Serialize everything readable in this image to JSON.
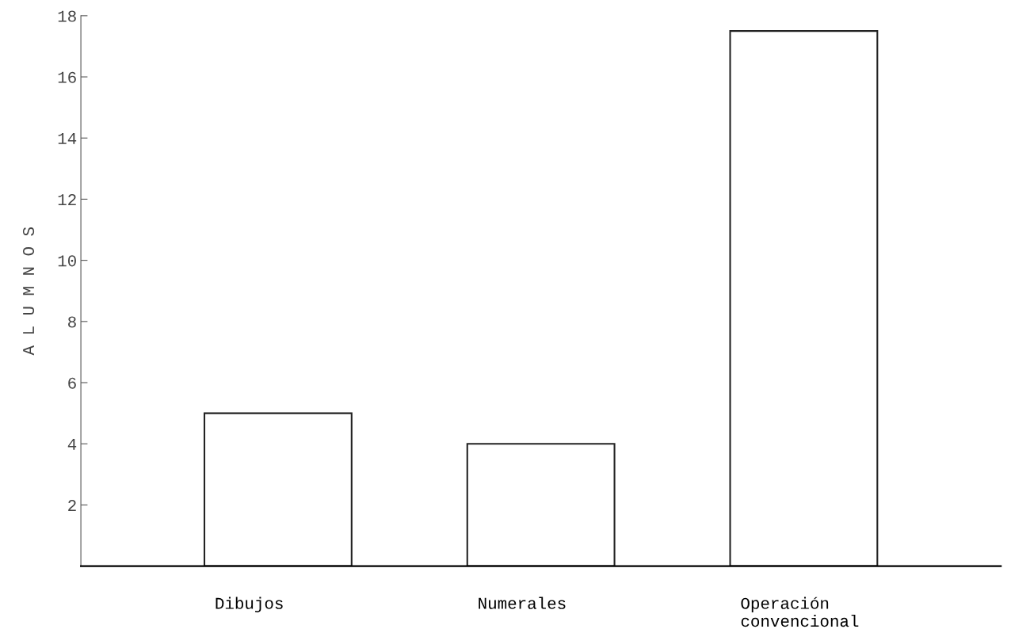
{
  "chart_data": {
    "type": "bar",
    "ylabel": "A L U M N O S",
    "categories": [
      "Dibujos",
      "Numerales",
      "Operación\nconvencional"
    ],
    "values": [
      5,
      4,
      17.5
    ],
    "color": "#ffffff",
    "ylim": [
      0,
      18
    ],
    "yticks": [
      2,
      4,
      6,
      8,
      10,
      12,
      14,
      16,
      18
    ],
    "grid": false
  }
}
